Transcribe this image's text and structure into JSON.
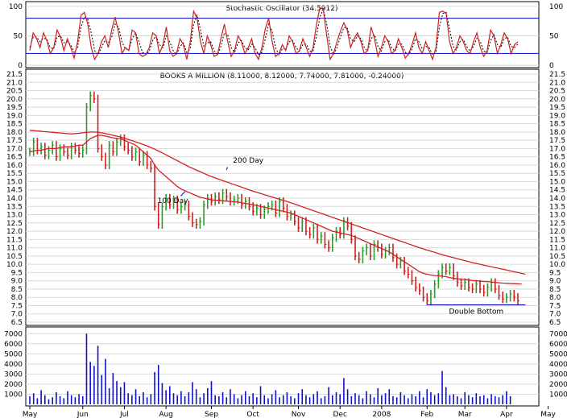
{
  "colors": {
    "background": "#ffffff",
    "frame": "#000000",
    "grid": "#d8d8d8",
    "up_bar": "#2a9a2a",
    "down_bar": "#cc2020",
    "ma_line": "#d42020",
    "stoch_k": "#cc2020",
    "stoch_d": "#000000",
    "stoch_level": "#0000cc",
    "volume": "#1010cc",
    "annotation": "#0000cc"
  },
  "chart_data": [
    {
      "type": "line",
      "panel": "stochastic",
      "title": "Stochastic Oscillator (34.5912)",
      "ylim": [
        0,
        100
      ],
      "yticks": [
        "0",
        "50",
        "100"
      ],
      "levels": [
        20,
        80
      ],
      "series": [
        {
          "values": [
            25,
            55,
            45,
            30,
            55,
            42,
            20,
            30,
            60,
            48,
            25,
            45,
            30,
            12,
            40,
            85,
            90,
            70,
            30,
            10,
            20,
            40,
            50,
            30,
            60,
            82,
            55,
            20,
            30,
            25,
            60,
            55,
            20,
            15,
            18,
            30,
            55,
            50,
            20,
            35,
            65,
            25,
            15,
            20,
            45,
            35,
            10,
            40,
            92,
            80,
            40,
            20,
            50,
            35,
            15,
            18,
            45,
            70,
            40,
            15,
            25,
            50,
            40,
            20,
            30,
            45,
            20,
            10,
            30,
            62,
            80,
            40,
            15,
            20,
            35,
            25,
            50,
            40,
            20,
            25,
            45,
            30,
            15,
            30,
            70,
            98,
            95,
            50,
            10,
            20,
            40,
            58,
            72,
            60,
            30,
            45,
            55,
            40,
            20,
            25,
            65,
            45,
            15,
            30,
            50,
            40,
            20,
            25,
            45,
            30,
            12,
            20,
            35,
            55,
            30,
            20,
            40,
            25,
            10,
            30,
            90,
            92,
            88,
            40,
            20,
            30,
            50,
            40,
            25,
            20,
            40,
            55,
            30,
            15,
            25,
            60,
            50,
            20,
            35,
            55,
            45,
            20,
            35,
            40
          ]
        },
        {
          "values": [
            30,
            48,
            48,
            40,
            46,
            44,
            30,
            28,
            48,
            50,
            38,
            40,
            35,
            22,
            30,
            65,
            82,
            78,
            55,
            25,
            18,
            30,
            42,
            38,
            48,
            70,
            65,
            40,
            28,
            26,
            45,
            55,
            40,
            22,
            18,
            24,
            42,
            50,
            35,
            30,
            50,
            40,
            25,
            18,
            32,
            38,
            22,
            28,
            70,
            85,
            60,
            32,
            38,
            40,
            25,
            18,
            32,
            55,
            52,
            30,
            22,
            38,
            42,
            30,
            26,
            36,
            30,
            18,
            22,
            45,
            70,
            58,
            30,
            18,
            28,
            28,
            40,
            42,
            30,
            24,
            35,
            36,
            24,
            24,
            50,
            82,
            95,
            70,
            32,
            18,
            30,
            48,
            64,
            64,
            45,
            40,
            50,
            45,
            30,
            24,
            45,
            52,
            32,
            24,
            40,
            44,
            30,
            24,
            36,
            36,
            22,
            18,
            28,
            45,
            40,
            28,
            32,
            30,
            18,
            22,
            65,
            88,
            90,
            62,
            32,
            26,
            40,
            44,
            32,
            24,
            32,
            46,
            40,
            24,
            22,
            42,
            52,
            35,
            30,
            45,
            48,
            32,
            30,
            36
          ]
        }
      ]
    },
    {
      "type": "bar",
      "panel": "price",
      "title": "BOOKS A MILLION (8.11000, 8.12000, 7.74000, 7.81000, -0.24000)",
      "ylim": [
        6.5,
        21.5
      ],
      "yticks": [
        "6.5",
        "7.0",
        "7.5",
        "8.0",
        "8.5",
        "9.0",
        "9.5",
        "10.0",
        "10.5",
        "11.0",
        "11.5",
        "12.0",
        "12.5",
        "13.0",
        "13.5",
        "14.0",
        "14.5",
        "15.0",
        "15.5",
        "16.0",
        "16.5",
        "17.0",
        "17.5",
        "18.0",
        "18.5",
        "19.0",
        "19.5",
        "20.0",
        "20.5",
        "21.0",
        "21.5"
      ],
      "close": [
        16.8,
        17.4,
        16.9,
        17.1,
        16.6,
        16.9,
        17.2,
        16.5,
        17.0,
        16.8,
        16.6,
        17.1,
        16.9,
        16.7,
        16.9,
        19.5,
        20.2,
        20.0,
        17.0,
        16.5,
        16.0,
        17.2,
        16.8,
        17.4,
        17.6,
        17.1,
        16.9,
        16.5,
        16.8,
        16.2,
        16.6,
        16.0,
        15.8,
        13.5,
        12.4,
        13.5,
        14.0,
        13.6,
        13.9,
        13.3,
        13.5,
        13.6,
        12.9,
        12.5,
        12.4,
        12.6,
        13.6,
        14.0,
        13.8,
        14.1,
        13.9,
        14.3,
        14.1,
        13.8,
        13.9,
        14.0,
        13.6,
        13.8,
        13.5,
        13.2,
        13.4,
        13.0,
        13.3,
        13.5,
        13.6,
        13.1,
        13.8,
        13.4,
        12.9,
        13.0,
        12.6,
        12.2,
        12.6,
        12.0,
        11.8,
        12.2,
        11.5,
        11.7,
        11.2,
        11.0,
        11.6,
        12.0,
        11.8,
        12.6,
        12.3,
        11.5,
        10.5,
        10.3,
        10.8,
        11.0,
        10.5,
        11.2,
        11.0,
        10.6,
        10.8,
        11.0,
        10.4,
        10.0,
        10.2,
        9.6,
        9.4,
        9.0,
        8.6,
        8.4,
        8.0,
        7.8,
        8.2,
        8.8,
        9.4,
        9.8,
        9.6,
        9.8,
        9.3,
        8.9,
        8.7,
        8.9,
        8.6,
        8.5,
        8.8,
        8.5,
        8.3,
        8.6,
        8.9,
        8.5,
        8.1,
        7.9,
        8.0,
        8.2,
        8.0,
        7.8
      ],
      "ma100": [
        16.8,
        16.85,
        16.9,
        16.9,
        16.95,
        17.0,
        17.0,
        17.0,
        17.05,
        17.1,
        17.1,
        17.1,
        17.15,
        17.2,
        17.2,
        17.4,
        17.6,
        17.7,
        17.8,
        17.8,
        17.75,
        17.7,
        17.65,
        17.6,
        17.6,
        17.5,
        17.4,
        17.3,
        17.2,
        17.0,
        16.8,
        16.6,
        16.4,
        16.0,
        15.7,
        15.5,
        15.3,
        15.1,
        14.9,
        14.7,
        14.55,
        14.45,
        14.35,
        14.25,
        14.15,
        14.05,
        14.0,
        13.95,
        13.9,
        13.88,
        13.86,
        13.84,
        13.82,
        13.8,
        13.78,
        13.76,
        13.72,
        13.68,
        13.64,
        13.6,
        13.55,
        13.5,
        13.45,
        13.4,
        13.35,
        13.3,
        13.25,
        13.2,
        13.15,
        13.1,
        13.0,
        12.9,
        12.8,
        12.7,
        12.6,
        12.5,
        12.4,
        12.3,
        12.2,
        12.1,
        12.0,
        11.95,
        11.9,
        11.85,
        11.8,
        11.75,
        11.65,
        11.55,
        11.45,
        11.35,
        11.25,
        11.15,
        11.05,
        10.95,
        10.85,
        10.75,
        10.6,
        10.45,
        10.3,
        10.15,
        10.0,
        9.85,
        9.7,
        9.55,
        9.45,
        9.4,
        9.35,
        9.32,
        9.3,
        9.28,
        9.25,
        9.2,
        9.15,
        9.12,
        9.1,
        9.08,
        9.05,
        9.02,
        9.0,
        8.98,
        8.96,
        8.95,
        8.93,
        8.9,
        8.88,
        8.86,
        8.85,
        8.84,
        8.83,
        8.82,
        8.81
      ],
      "ma200": [
        18.1,
        18.08,
        18.06,
        18.04,
        18.02,
        18.0,
        17.98,
        17.96,
        17.94,
        17.92,
        17.9,
        17.88,
        17.9,
        17.92,
        17.95,
        17.98,
        18.0,
        18.0,
        17.98,
        17.95,
        17.9,
        17.85,
        17.8,
        17.75,
        17.7,
        17.62,
        17.55,
        17.48,
        17.4,
        17.32,
        17.24,
        17.16,
        17.06,
        16.96,
        16.85,
        16.74,
        16.62,
        16.5,
        16.38,
        16.26,
        16.14,
        16.02,
        15.9,
        15.8,
        15.7,
        15.6,
        15.5,
        15.4,
        15.3,
        15.22,
        15.14,
        15.06,
        14.98,
        14.9,
        14.82,
        14.74,
        14.66,
        14.58,
        14.5,
        14.42,
        14.35,
        14.28,
        14.21,
        14.14,
        14.07,
        14.0,
        13.93,
        13.86,
        13.79,
        13.72,
        13.64,
        13.56,
        13.48,
        13.4,
        13.32,
        13.24,
        13.16,
        13.08,
        13.0,
        12.92,
        12.84,
        12.76,
        12.68,
        12.6,
        12.52,
        12.44,
        12.36,
        12.28,
        12.2,
        12.12,
        12.04,
        11.96,
        11.88,
        11.8,
        11.72,
        11.64,
        11.56,
        11.48,
        11.4,
        11.32,
        11.24,
        11.16,
        11.08,
        11.0,
        10.93,
        10.86,
        10.79,
        10.72,
        10.65,
        10.58,
        10.52,
        10.46,
        10.4,
        10.34,
        10.28,
        10.22,
        10.16,
        10.1,
        10.05,
        10.0,
        9.95,
        9.9,
        9.85,
        9.8,
        9.75,
        9.7,
        9.65,
        9.6,
        9.55,
        9.5,
        9.45,
        9.4
      ],
      "annotations": [
        {
          "label": "200 Day",
          "at": 52,
          "value": 15.7,
          "text_dx": 8,
          "text_dy": -9
        },
        {
          "label": "100 Day",
          "at": 41,
          "value": 14.4,
          "text_dx": -34,
          "text_dy": 14
        }
      ],
      "support": {
        "label": "Double Bottom",
        "value": 7.55,
        "from": 105,
        "to": 131
      }
    },
    {
      "type": "bar",
      "panel": "volume",
      "ylim": [
        0,
        7500
      ],
      "yticks": [
        "1000",
        "2000",
        "3000",
        "4000",
        "5000",
        "6000",
        "7000"
      ],
      "values": [
        800,
        1100,
        600,
        1400,
        900,
        500,
        700,
        1200,
        800,
        600,
        1300,
        900,
        700,
        1000,
        800,
        7000,
        4200,
        3800,
        5800,
        2900,
        4500,
        1600,
        3100,
        2300,
        1700,
        2200,
        1100,
        900,
        1500,
        800,
        1200,
        700,
        1000,
        3200,
        3900,
        2100,
        1400,
        1800,
        1100,
        900,
        1300,
        800,
        1200,
        2200,
        1500,
        700,
        1100,
        1600,
        2300,
        900,
        800,
        1200,
        700,
        1500,
        1000,
        600,
        900,
        1300,
        800,
        1100,
        700,
        1800,
        900,
        600,
        1000,
        1400,
        700,
        900,
        1200,
        800,
        600,
        1100,
        1500,
        900,
        700,
        1000,
        1300,
        600,
        800,
        1700,
        900,
        1200,
        1000,
        2600,
        1500,
        800,
        1100,
        900,
        600,
        1300,
        1000,
        700,
        1600,
        900,
        1100,
        1500,
        800,
        700,
        1200,
        900,
        600,
        1000,
        800,
        1300,
        700,
        1500,
        1200,
        900,
        1100,
        3300,
        1700,
        900,
        1000,
        800,
        600,
        1200,
        900,
        700,
        1100,
        800,
        900,
        600,
        1000,
        800,
        700,
        900,
        1300,
        800
      ]
    }
  ],
  "x_axis": {
    "months": [
      {
        "label": "May",
        "at": 0
      },
      {
        "label": "Jun",
        "at": 14
      },
      {
        "label": "Jul",
        "at": 25
      },
      {
        "label": "Aug",
        "at": 36
      },
      {
        "label": "Sep",
        "at": 48
      },
      {
        "label": "Oct",
        "at": 59
      },
      {
        "label": "Nov",
        "at": 71
      },
      {
        "label": "Dec",
        "at": 82
      },
      {
        "label": "2008",
        "at": 93
      },
      {
        "label": "Feb",
        "at": 105
      },
      {
        "label": "Mar",
        "at": 115
      },
      {
        "label": "Apr",
        "at": 126
      },
      {
        "label": "May",
        "at": 137
      }
    ]
  }
}
